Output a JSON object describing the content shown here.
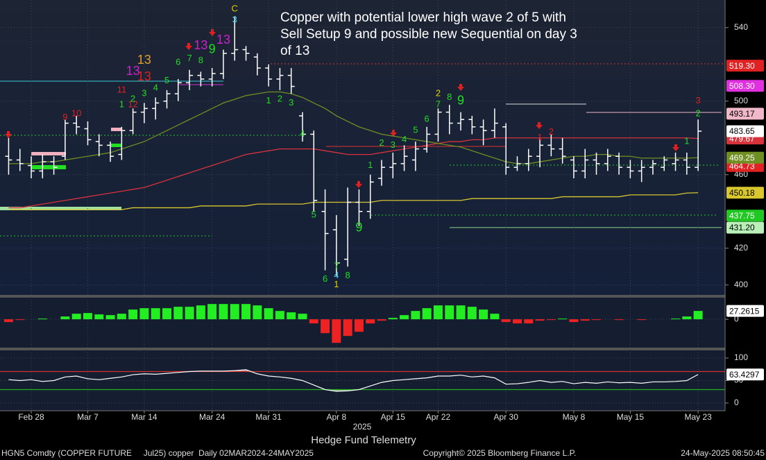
{
  "chart_data": [
    {
      "type": "ohlc",
      "title": [
        "Copper with potential lower high wave 2 of 5 with",
        "Sell Setup 9 and possible new Sequential on day 3",
        "of 13"
      ],
      "xlabel": "2025",
      "color": "#ffffff",
      "categories": [
        null,
        null,
        "Feb 28",
        null,
        null,
        null,
        null,
        "Mar 7",
        null,
        null,
        null,
        null,
        "Mar 14",
        null,
        null,
        null,
        null,
        null,
        "Mar 24",
        null,
        null,
        null,
        null,
        "Mar 31",
        null,
        null,
        null,
        null,
        null,
        "Apr 8",
        null,
        null,
        null,
        null,
        "Apr 15",
        null,
        null,
        null,
        "Apr 22",
        null,
        null,
        null,
        null,
        null,
        "Apr 30",
        null,
        null,
        null,
        null,
        null,
        "May 8",
        null,
        null,
        null,
        null,
        "May 15",
        null,
        null,
        null,
        null,
        null,
        "May 23"
      ],
      "open": [
        470,
        468,
        465,
        462,
        467,
        470,
        488,
        485,
        478,
        476,
        471,
        484,
        494,
        496,
        500,
        504,
        510,
        514,
        512,
        515,
        526,
        528,
        524,
        518,
        512,
        514,
        492,
        482,
        440,
        430,
        414,
        445,
        440,
        458,
        464,
        466,
        468,
        474,
        482,
        494,
        488,
        490,
        486,
        484,
        486,
        464,
        466,
        470,
        476,
        474,
        468,
        462,
        468,
        466,
        470,
        464,
        462,
        464,
        464,
        466,
        468,
        464
      ],
      "high": [
        480,
        474,
        470,
        471,
        470,
        490,
        492,
        489,
        482,
        478,
        486,
        496,
        499,
        502,
        506,
        512,
        517,
        516,
        518,
        528,
        546,
        530,
        526,
        520,
        518,
        518,
        494,
        484,
        452,
        438,
        453,
        452,
        460,
        468,
        472,
        476,
        478,
        486,
        496,
        498,
        494,
        492,
        490,
        496,
        488,
        470,
        474,
        480,
        482,
        480,
        470,
        474,
        472,
        474,
        472,
        468,
        468,
        468,
        470,
        472,
        472,
        490
      ],
      "low": [
        460,
        462,
        458,
        458,
        460,
        468,
        482,
        476,
        470,
        467,
        468,
        482,
        488,
        490,
        496,
        500,
        506,
        508,
        508,
        512,
        522,
        522,
        514,
        508,
        506,
        504,
        478,
        440,
        408,
        405,
        410,
        432,
        436,
        454,
        458,
        462,
        462,
        472,
        478,
        482,
        484,
        482,
        476,
        480,
        460,
        462,
        462,
        464,
        470,
        466,
        458,
        458,
        460,
        462,
        460,
        458,
        456,
        460,
        462,
        462,
        460,
        462
      ],
      "close": [
        468,
        466,
        462,
        467,
        464,
        488,
        486,
        479,
        476,
        470,
        484,
        494,
        496,
        499,
        504,
        510,
        514,
        512,
        515,
        526,
        528,
        526,
        518,
        512,
        514,
        508,
        482,
        446,
        428,
        412,
        445,
        440,
        456,
        464,
        466,
        470,
        474,
        482,
        494,
        488,
        490,
        486,
        484,
        488,
        464,
        466,
        470,
        476,
        474,
        470,
        462,
        468,
        466,
        470,
        464,
        462,
        464,
        466,
        468,
        468,
        464,
        483.65
      ],
      "series": [
        {
          "color": "#d8323c",
          "values": [
            442,
            442,
            443,
            444,
            445,
            446,
            447,
            448,
            449,
            450,
            451,
            452,
            453,
            455,
            457,
            459,
            461,
            463,
            465,
            467,
            469,
            471,
            472,
            473,
            474,
            474,
            474,
            474,
            473,
            472,
            471,
            471,
            471,
            472,
            473,
            474,
            475,
            476,
            477,
            478,
            478,
            479,
            479,
            480,
            480,
            480,
            480,
            480,
            480,
            480,
            480,
            480,
            480,
            480,
            480,
            480,
            480,
            480,
            480,
            480,
            480,
            479.67
          ]
        },
        {
          "color": "#6f8f22",
          "values": [
            466,
            466,
            466,
            467,
            467,
            468,
            469,
            470,
            471,
            472,
            474,
            476,
            478,
            481,
            484,
            487,
            490,
            493,
            496,
            499,
            501,
            503,
            504,
            505,
            505,
            504,
            502,
            499,
            496,
            492,
            489,
            486,
            484,
            482,
            481,
            480,
            479,
            478,
            477,
            476,
            475,
            473,
            471,
            469,
            467,
            466,
            466,
            467,
            468,
            469,
            470,
            470,
            471,
            471,
            470,
            470,
            469,
            469,
            469,
            469,
            469,
            469.25
          ]
        },
        {
          "color": "#d8c82e",
          "values": [
            441,
            441,
            441,
            441,
            441,
            441,
            441,
            441,
            441,
            441,
            441,
            442,
            442,
            442,
            442,
            442,
            442,
            443,
            443,
            443,
            443,
            443,
            444,
            444,
            444,
            444,
            444,
            445,
            445,
            445,
            445,
            445,
            445,
            446,
            446,
            446,
            446,
            446,
            446,
            446,
            446,
            447,
            447,
            447,
            447,
            447,
            447,
            447,
            447,
            448,
            448,
            448,
            448,
            448,
            448,
            449,
            449,
            449,
            449,
            449,
            450,
            450.18
          ]
        }
      ],
      "levels": {
        "values": [
          519.3,
          508.3,
          493.17,
          464.73,
          437.75,
          431.2
        ],
        "value_labels": [
          "519.30",
          "508.30",
          "493.17",
          "464.73",
          "437.75",
          "431.20"
        ],
        "colors": [
          "#e02222",
          "#e030e0",
          "#f0b8c8",
          "#e02222",
          "#22c822",
          "#b8f0b8"
        ]
      },
      "td_labels": [
        {
          "text": "9",
          "index": 5,
          "price": 491,
          "color": "#e02020"
        },
        {
          "text": "10",
          "index": 6,
          "price": 493,
          "color": "#e02020"
        },
        {
          "text": "11",
          "index": 10,
          "price": 506,
          "color": "#e02020"
        },
        {
          "text": "12",
          "index": 11,
          "price": 498,
          "color": "#e02020"
        },
        {
          "text": "13",
          "index": 11,
          "price": 516,
          "color": "#d020d0",
          "size": "large"
        },
        {
          "text": "13",
          "index": 12,
          "price": 513,
          "color": "#e02020",
          "size": "large"
        },
        {
          "text": "13",
          "index": 12,
          "price": 522,
          "color": "#e0a030",
          "size": "large"
        },
        {
          "text": "1",
          "index": 10,
          "price": 498,
          "color": "#22dd22"
        },
        {
          "text": "2",
          "index": 11,
          "price": 501,
          "color": "#22dd22"
        },
        {
          "text": "3",
          "index": 12,
          "price": 504,
          "color": "#22dd22"
        },
        {
          "text": "4",
          "index": 13,
          "price": 507,
          "color": "#22dd22"
        },
        {
          "text": "5",
          "index": 14,
          "price": 511,
          "color": "#22dd22"
        },
        {
          "text": "6",
          "index": 15,
          "price": 521,
          "color": "#22dd22"
        },
        {
          "text": "7",
          "index": 16,
          "price": 523,
          "color": "#22dd22"
        },
        {
          "text": "8",
          "index": 17,
          "price": 522,
          "color": "#22dd22"
        },
        {
          "text": "9",
          "index": 18,
          "price": 528,
          "color": "#22dd22",
          "size": "large"
        },
        {
          "text": "13",
          "index": 17,
          "price": 530,
          "color": "#d020d0",
          "size": "large"
        },
        {
          "text": "13",
          "index": 19,
          "price": 533,
          "color": "#d020d0",
          "size": "large"
        },
        {
          "text": "C",
          "index": 20,
          "price": 550,
          "color": "#e0d000"
        },
        {
          "text": "3",
          "index": 20,
          "price": 544,
          "color": "#40d0f0"
        },
        {
          "text": "1",
          "index": 23,
          "price": 500,
          "color": "#22dd22"
        },
        {
          "text": "2",
          "index": 24,
          "price": 501,
          "color": "#22dd22"
        },
        {
          "text": "3",
          "index": 25,
          "price": 499,
          "color": "#22dd22"
        },
        {
          "text": "4",
          "index": 26,
          "price": 482,
          "color": "#22dd22"
        },
        {
          "text": "5",
          "index": 27,
          "price": 438,
          "color": "#22dd22"
        },
        {
          "text": "6",
          "index": 28,
          "price": 403,
          "color": "#22dd22"
        },
        {
          "text": "7",
          "index": 29,
          "price": 410,
          "color": "#22dd22"
        },
        {
          "text": "4",
          "index": 29,
          "price": 405,
          "color": "#40d0f0"
        },
        {
          "text": "1",
          "index": 29,
          "price": 400,
          "color": "#e0d000"
        },
        {
          "text": "8",
          "index": 30,
          "price": 405,
          "color": "#22dd22"
        },
        {
          "text": "9",
          "index": 31,
          "price": 431,
          "color": "#22dd22",
          "size": "large"
        },
        {
          "text": "1",
          "index": 32,
          "price": 465,
          "color": "#22dd22"
        },
        {
          "text": "2",
          "index": 33,
          "price": 477,
          "color": "#22dd22"
        },
        {
          "text": "3",
          "index": 34,
          "price": 476,
          "color": "#22dd22"
        },
        {
          "text": "4",
          "index": 35,
          "price": 479,
          "color": "#22dd22"
        },
        {
          "text": "5",
          "index": 36,
          "price": 484,
          "color": "#22dd22"
        },
        {
          "text": "6",
          "index": 37,
          "price": 490,
          "color": "#22dd22"
        },
        {
          "text": "7",
          "index": 38,
          "price": 498,
          "color": "#22dd22"
        },
        {
          "text": "2",
          "index": 38,
          "price": 504,
          "color": "#e0d000"
        },
        {
          "text": "8",
          "index": 39,
          "price": 502,
          "color": "#22dd22"
        },
        {
          "text": "9",
          "index": 40,
          "price": 500,
          "color": "#22dd22",
          "size": "large"
        },
        {
          "text": "1",
          "index": 47,
          "price": 480,
          "color": "#e02020"
        },
        {
          "text": "2",
          "index": 48,
          "price": 483,
          "color": "#e02020"
        },
        {
          "text": "1",
          "index": 60,
          "price": 478,
          "color": "#22dd22"
        },
        {
          "text": "2",
          "index": 61,
          "price": 493,
          "color": "#22dd22"
        },
        {
          "text": "3",
          "index": 61,
          "price": 500,
          "color": "#e02020"
        }
      ],
      "ylim": [
        395,
        555
      ],
      "yticks": [
        400,
        420,
        460,
        500,
        540
      ],
      "grid": true
    },
    {
      "type": "bar",
      "values": [
        -9.1,
        -2.3,
        0,
        2.3,
        0,
        9.1,
        18.2,
        20.4,
        15.9,
        13.6,
        18.2,
        31.8,
        36.3,
        36.3,
        36.3,
        40.9,
        40.9,
        45.4,
        49.9,
        49.9,
        49.9,
        49.9,
        45.4,
        36.3,
        27.2,
        22.7,
        18.2,
        -13.6,
        -45.4,
        -77.2,
        -54.5,
        -40.9,
        -13.6,
        -4.5,
        4.5,
        13.6,
        27.2,
        36.3,
        45.4,
        45.4,
        45.4,
        40.9,
        31.8,
        18.2,
        -9.1,
        -13.6,
        -13.6,
        -4.5,
        -2.3,
        2.3,
        -9.1,
        -4.5,
        -2.3,
        0,
        -2.3,
        0,
        -2.3,
        0,
        0,
        2.3,
        9.1,
        27.2615
      ],
      "color": "#22ee22",
      "negative_color": "#ee2222",
      "ylim": [
        -95,
        73
      ],
      "yticks": [
        0
      ]
    },
    {
      "type": "line",
      "values": [
        52,
        50,
        52,
        48,
        50,
        58,
        60,
        54,
        52,
        55,
        58,
        63,
        65,
        64,
        66,
        68,
        70,
        71,
        71,
        71,
        72,
        74,
        65,
        60,
        58,
        55,
        50,
        40,
        30,
        26,
        27,
        30,
        38,
        46,
        50,
        52,
        54,
        56,
        60,
        60,
        62,
        58,
        60,
        56,
        42,
        43,
        46,
        50,
        46,
        48,
        43,
        46,
        44,
        47,
        45,
        46,
        44,
        47,
        47,
        48,
        50,
        63.4297
      ],
      "color": "#ffffff",
      "thresholds": [
        {
          "value": 70,
          "color": "#d03030",
          "fill": "#c89a9a"
        },
        {
          "value": 30,
          "color": "#22b022",
          "fill": "#a8d0a8"
        }
      ],
      "ylim": [
        -17,
        117
      ],
      "yticks": [
        0,
        50,
        100
      ]
    }
  ],
  "footer": {
    "source": "Hedge Fund Telemetry",
    "ticker": "HGN5 Comdty (COPPER FUTURE     Jul25) copper  Daily 02MAR2024-24MAY2025",
    "copyright": "Copyright© 2025 Bloomberg Finance L.P.",
    "timestamp": "24-May-2025 08:50:45"
  }
}
